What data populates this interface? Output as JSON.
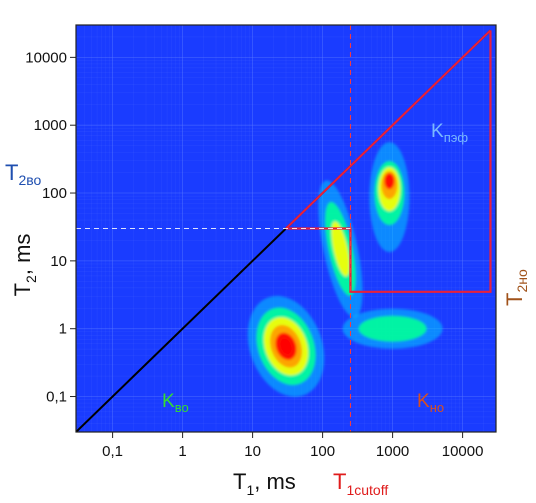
{
  "chart_data": {
    "type": "heatmap",
    "xlabel": {
      "main": "T",
      "sub": "1",
      "rest": ",  ms"
    },
    "ylabel": {
      "main": "T",
      "sub": "2",
      "rest": ",  ms"
    },
    "x_scale": "log",
    "y_scale": "log",
    "xlim": [
      0.03,
      30000
    ],
    "ylim": [
      0.03,
      30000
    ],
    "x_ticks": [
      {
        "value": 0.1,
        "label": "0,1"
      },
      {
        "value": 1,
        "label": "1"
      },
      {
        "value": 10,
        "label": "10"
      },
      {
        "value": 100,
        "label": "100"
      },
      {
        "value": 1000,
        "label": "1000"
      },
      {
        "value": 10000,
        "label": "10000"
      }
    ],
    "y_ticks": [
      {
        "value": 0.1,
        "label": "0,1"
      },
      {
        "value": 1,
        "label": "1"
      },
      {
        "value": 10,
        "label": "10"
      },
      {
        "value": 100,
        "label": "100"
      },
      {
        "value": 1000,
        "label": "1000"
      },
      {
        "value": 10000,
        "label": "10000"
      }
    ],
    "grid": true,
    "colormap": [
      "#1a3cff",
      "#00c8ff",
      "#00ff9a",
      "#ffff00",
      "#ff9a00",
      "#ff0000"
    ],
    "peaks": [
      {
        "t1": 30,
        "t2": 0.55,
        "intensity": 1.0
      },
      {
        "t1": 900,
        "t2": 150,
        "intensity": 1.0
      },
      {
        "t1": 180,
        "t2": 15,
        "intensity": 0.45
      },
      {
        "t1": 1000,
        "t2": 1.0,
        "intensity": 0.2
      }
    ],
    "diagonal": {
      "from": [
        0.03,
        0.03
      ],
      "to": [
        25000,
        25000
      ],
      "color": "#000000"
    },
    "cutoff": {
      "t1": 250,
      "t2": 30,
      "color": "#ff3a3a"
    },
    "region_outline": {
      "color": "#e8203c",
      "points": [
        [
          30,
          30
        ],
        [
          250,
          30
        ],
        [
          250,
          3.5
        ],
        [
          25000,
          3.5
        ],
        [
          25000,
          25000
        ]
      ]
    },
    "annotations": {
      "t2vo": {
        "main": "T",
        "sub": "2во",
        "color": "#1f4fb0"
      },
      "t2no": {
        "main": "T",
        "sub": "2но",
        "color": "#a0521a"
      },
      "t1cutoff": {
        "main": "T",
        "sub": "1cutoff",
        "color": "#e01c1c"
      },
      "kvo": {
        "main": "K",
        "sub": "во",
        "color": "#33dd33"
      },
      "kno": {
        "main": "K",
        "sub": "но",
        "color": "#d85020"
      },
      "kpaf": {
        "main": "K",
        "sub": "пэф",
        "color": "#7ab8ff"
      }
    }
  }
}
